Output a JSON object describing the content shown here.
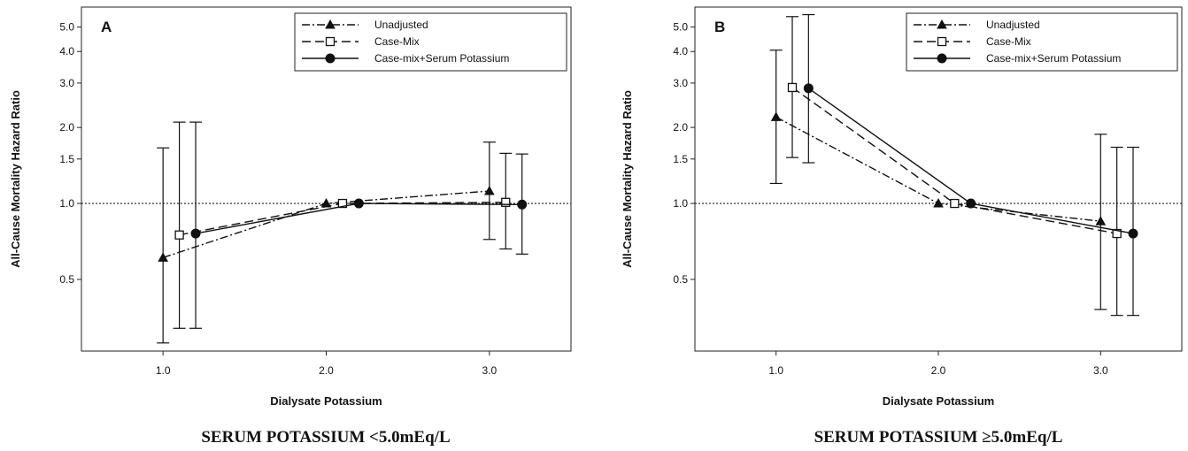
{
  "chart_data": [
    {
      "type": "line",
      "panel_label": "A",
      "caption": "SERUM POTASSIUM <5.0mEq/L",
      "xlabel": "Dialysate Potassium",
      "ylabel": "All-Cause Mortality Hazard Ratio",
      "xlim": [
        0.5,
        3.5
      ],
      "x_ticks": [
        1.0,
        2.0,
        3.0
      ],
      "x_tick_labels": [
        "1.0",
        "2.0",
        "3.0"
      ],
      "y_scale": "log",
      "ylim": [
        0.26,
        6.0
      ],
      "y_ticks": [
        0.5,
        1.0,
        1.5,
        2.0,
        3.0,
        4.0,
        5.0
      ],
      "y_tick_labels": [
        "0.5",
        "1.0",
        "1.5",
        "2.0",
        "3.0",
        "4.0",
        "5.0"
      ],
      "reference_line": 1.0,
      "legend_position": "top-right",
      "series": [
        {
          "name": "Unadjusted",
          "marker": "triangle",
          "line_style": "dash-dot",
          "x": [
            1.0,
            2.0,
            3.0
          ],
          "y": [
            0.61,
            1.0,
            1.12
          ],
          "ci_low": [
            0.28,
            null,
            0.72
          ],
          "ci_high": [
            1.66,
            null,
            1.75
          ]
        },
        {
          "name": "Case-Mix",
          "marker": "open-square",
          "line_style": "dashed",
          "x": [
            1.1,
            2.1,
            3.1
          ],
          "y": [
            0.75,
            1.0,
            1.01
          ],
          "ci_low": [
            0.32,
            null,
            0.66
          ],
          "ci_high": [
            2.1,
            null,
            1.58
          ]
        },
        {
          "name": "Case-mix+Serum Potassium",
          "marker": "filled-circle",
          "line_style": "solid",
          "x": [
            1.2,
            2.2,
            3.2
          ],
          "y": [
            0.76,
            1.0,
            0.99
          ],
          "ci_low": [
            0.32,
            null,
            0.63
          ],
          "ci_high": [
            2.1,
            null,
            1.57
          ]
        }
      ]
    },
    {
      "type": "line",
      "panel_label": "B",
      "caption": "SERUM POTASSIUM ≥5.0mEq/L",
      "xlabel": "Dialysate Potassium",
      "ylabel": "All-Cause Mortality Hazard Ratio",
      "xlim": [
        0.5,
        3.5
      ],
      "x_ticks": [
        1.0,
        2.0,
        3.0
      ],
      "x_tick_labels": [
        "1.0",
        "2.0",
        "3.0"
      ],
      "y_scale": "log",
      "ylim": [
        0.26,
        6.0
      ],
      "y_ticks": [
        0.5,
        1.0,
        1.5,
        2.0,
        3.0,
        4.0,
        5.0
      ],
      "y_tick_labels": [
        "0.5",
        "1.0",
        "1.5",
        "2.0",
        "3.0",
        "4.0",
        "5.0"
      ],
      "reference_line": 1.0,
      "legend_position": "top-right",
      "series": [
        {
          "name": "Unadjusted",
          "marker": "triangle",
          "line_style": "dash-dot",
          "x": [
            1.0,
            2.0,
            3.0
          ],
          "y": [
            2.2,
            1.0,
            0.85
          ],
          "ci_low": [
            1.2,
            null,
            0.38
          ],
          "ci_high": [
            4.05,
            null,
            1.88
          ]
        },
        {
          "name": "Case-Mix",
          "marker": "open-square",
          "line_style": "dashed",
          "x": [
            1.1,
            2.1,
            3.1
          ],
          "y": [
            2.88,
            1.0,
            0.76
          ],
          "ci_low": [
            1.52,
            null,
            0.36
          ],
          "ci_high": [
            5.5,
            null,
            1.67
          ]
        },
        {
          "name": "Case-mix+Serum Potassium",
          "marker": "filled-circle",
          "line_style": "solid",
          "x": [
            1.2,
            2.2,
            3.2
          ],
          "y": [
            2.86,
            1.0,
            0.76
          ],
          "ci_low": [
            1.45,
            null,
            0.36
          ],
          "ci_high": [
            5.6,
            null,
            1.67
          ]
        }
      ]
    }
  ]
}
